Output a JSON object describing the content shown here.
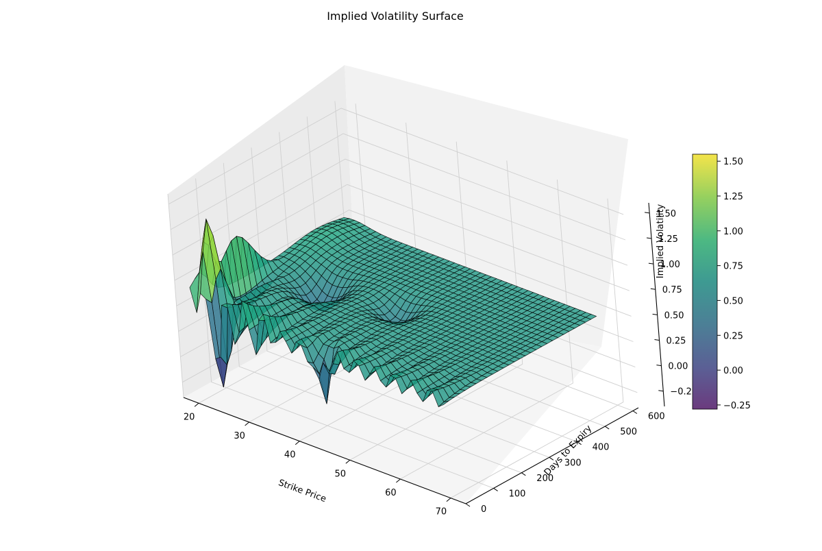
{
  "chart_data": {
    "type": "surface3d",
    "title": "Implied Volatility Surface",
    "xlabel": "Strike Price",
    "ylabel": "Days to Expiry",
    "zlabel": "Implied Volatility",
    "x_ticks": [
      20,
      30,
      40,
      50,
      60,
      70
    ],
    "y_ticks": [
      0,
      100,
      200,
      300,
      400,
      500,
      600
    ],
    "z_ticks": [
      -0.25,
      0.0,
      0.25,
      0.5,
      0.75,
      1.0,
      1.25,
      1.5
    ],
    "x_tick_labels": [
      "20",
      "30",
      "40",
      "50",
      "60",
      "70"
    ],
    "y_tick_labels": [
      "0",
      "100",
      "200",
      "300",
      "400",
      "500",
      "600"
    ],
    "z_tick_labels": [
      "−0.25",
      "0.00",
      "0.25",
      "0.50",
      "0.75",
      "1.00",
      "1.25",
      "1.50"
    ],
    "xlim": [
      17,
      73
    ],
    "ylim": [
      0,
      620
    ],
    "zlim": [
      -0.4,
      1.6
    ],
    "colormap": "viridis",
    "colorbar": {
      "ticks": [
        -0.25,
        0.0,
        0.25,
        0.5,
        0.75,
        1.0,
        1.25,
        1.5
      ],
      "tick_labels": [
        "−0.25",
        "0.00",
        "0.25",
        "0.50",
        "0.75",
        "1.00",
        "1.25",
        "1.50"
      ],
      "range": [
        -0.28,
        1.55
      ]
    },
    "surface_summary": {
      "x_range": [
        20,
        70
      ],
      "y_range": [
        0,
        550
      ],
      "base_level": 0.55,
      "peak_value": 1.55,
      "trough_value": -0.28,
      "features": [
        {
          "strike": 22,
          "days": 40,
          "value": 1.5
        },
        {
          "strike": 24,
          "days": 25,
          "value": -0.28
        },
        {
          "strike": 45,
          "days": 20,
          "value": 0.1
        },
        {
          "strike": 30,
          "days": 280,
          "value": 0.25
        }
      ]
    },
    "grid": true,
    "legend": "none"
  }
}
